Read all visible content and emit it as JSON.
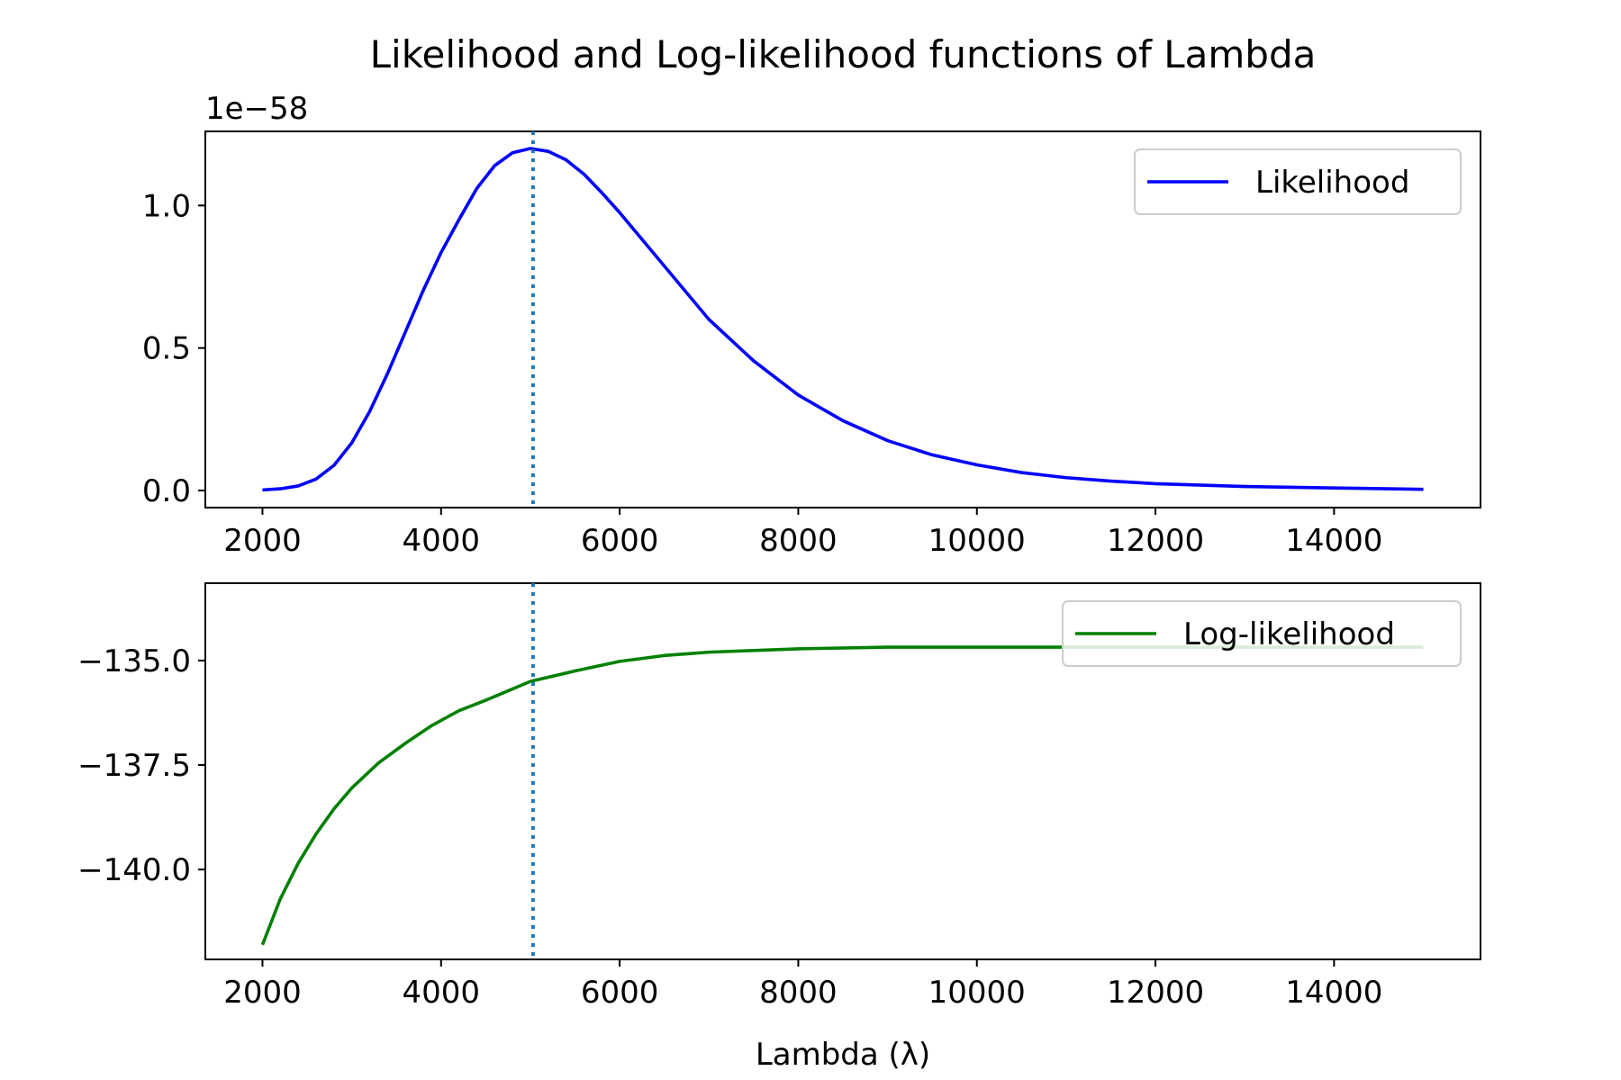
{
  "figure": {
    "title": "Likelihood and Log-likelihood functions of Lambda",
    "xlabel": "Lambda (λ)"
  },
  "chart_data": [
    {
      "type": "line",
      "title": "",
      "xlabel": "",
      "ylabel": "",
      "offset_text": "1e−58",
      "xlim": [
        1360,
        15640
      ],
      "ylim": [
        -0.06,
        1.26
      ],
      "xticks": [
        2000,
        4000,
        6000,
        8000,
        10000,
        12000,
        14000
      ],
      "xtick_labels": [
        "2000",
        "4000",
        "6000",
        "8000",
        "10000",
        "12000",
        "14000"
      ],
      "yticks": [
        0.0,
        0.5,
        1.0
      ],
      "ytick_labels": [
        "0.0",
        "0.5",
        "1.0"
      ],
      "grid": false,
      "legend": "top-right",
      "vline": 5030,
      "series": [
        {
          "name": "Likelihood",
          "color": "#0000ff",
          "x": [
            2000,
            2200,
            2400,
            2600,
            2800,
            3000,
            3200,
            3400,
            3600,
            3800,
            4000,
            4200,
            4400,
            4600,
            4800,
            5000,
            5200,
            5400,
            5600,
            5800,
            6000,
            6200,
            6400,
            6600,
            6800,
            7000,
            7500,
            8000,
            8500,
            9000,
            9500,
            10000,
            10500,
            11000,
            11500,
            12000,
            13000,
            14000,
            15000
          ],
          "y": [
            0.002,
            0.006,
            0.016,
            0.04,
            0.088,
            0.167,
            0.277,
            0.41,
            0.556,
            0.702,
            0.835,
            0.95,
            1.06,
            1.14,
            1.185,
            1.2,
            1.19,
            1.16,
            1.11,
            1.045,
            0.975,
            0.9,
            0.825,
            0.75,
            0.675,
            0.6,
            0.455,
            0.335,
            0.245,
            0.175,
            0.125,
            0.09,
            0.063,
            0.045,
            0.033,
            0.024,
            0.014,
            0.009,
            0.004
          ]
        }
      ]
    },
    {
      "type": "line",
      "title": "",
      "xlabel": "Lambda (λ)",
      "ylabel": "",
      "xlim": [
        1360,
        15640
      ],
      "ylim": [
        -142.15,
        -133.15
      ],
      "xticks": [
        2000,
        4000,
        6000,
        8000,
        10000,
        12000,
        14000
      ],
      "xtick_labels": [
        "2000",
        "4000",
        "6000",
        "8000",
        "10000",
        "12000",
        "14000"
      ],
      "yticks": [
        -135.0,
        -137.5,
        -140.0
      ],
      "ytick_labels": [
        "−135.0",
        "−137.5",
        "−140.0"
      ],
      "grid": false,
      "legend": "top-right",
      "vline": 5030,
      "series": [
        {
          "name": "Log-likelihood",
          "color": "#008000",
          "x": [
            2000,
            2200,
            2400,
            2600,
            2800,
            3000,
            3300,
            3600,
            3900,
            4200,
            4500,
            5000,
            5500,
            6000,
            6500,
            7000,
            8000,
            9000,
            10000,
            11000,
            12000,
            13000,
            14000,
            15000
          ],
          "y": [
            -141.8,
            -140.7,
            -139.85,
            -139.15,
            -138.55,
            -138.05,
            -137.45,
            -136.98,
            -136.55,
            -136.2,
            -135.95,
            -135.5,
            -135.25,
            -135.02,
            -134.88,
            -134.8,
            -134.72,
            -134.68,
            -134.68,
            -134.68,
            -134.68,
            -134.68,
            -134.68,
            -134.68
          ]
        }
      ]
    }
  ]
}
